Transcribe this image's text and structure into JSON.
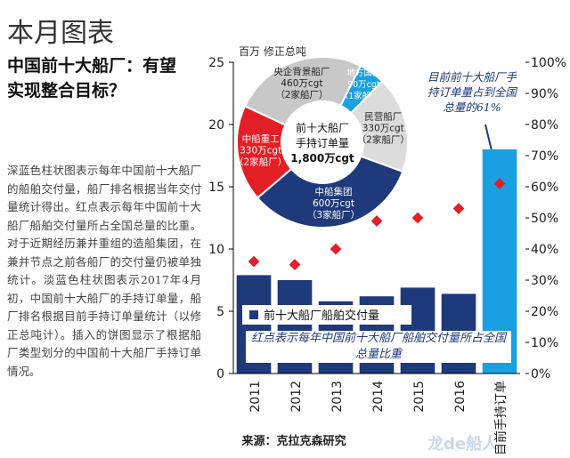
{
  "header": {
    "title": "本月图表"
  },
  "article": {
    "headline": "中国前十大船厂：有望实现整合目标？",
    "body": "深蓝色柱状图表示每年中国前十大船厂的船舶交付量，船厂排名根据当年交付量统计得出。红点表示每年中国前十大船厂船舶交付量所占全国总量的比重。对于近期经历兼并重组的造船集团，在兼并节点之前各船厂的交付量仍被单独统计。淡蓝色柱状图表示2017年4月初，中国前十大船厂的手持订单量，船厂排名根据目前手持订单量统计（以修正总吨计）。插入的饼图显示了根据船厂类型划分的中国前十大船厂手持订单情况。"
  },
  "chart_data": {
    "type": "bar",
    "y_axis_label": "百万 修正总吨",
    "categories": [
      "2011",
      "2012",
      "2013",
      "2014",
      "2015",
      "2016",
      "目前手持订单"
    ],
    "ylim": [
      0,
      25
    ],
    "yticks": [
      0,
      5,
      10,
      15,
      20,
      25
    ],
    "y2lim": [
      0,
      100
    ],
    "y2ticks": [
      {
        "value": 0,
        "label": "0%"
      },
      {
        "value": 10,
        "label": "10%"
      },
      {
        "value": 20,
        "label": "20%"
      },
      {
        "value": 30,
        "label": "30%"
      },
      {
        "value": 40,
        "label": "40%"
      },
      {
        "value": 50,
        "label": "50%"
      },
      {
        "value": 60,
        "label": "60%"
      },
      {
        "value": 70,
        "label": "70%"
      },
      {
        "value": 80,
        "label": "80%"
      },
      {
        "value": 90,
        "label": "90%"
      },
      {
        "value": 100,
        "label": "100%"
      }
    ],
    "series": [
      {
        "name": "前十大船厂船舶交付量",
        "color": "#1f3a7a",
        "highlight_color": "#1aa0e0",
        "values": [
          7.9,
          7.5,
          5.8,
          6.2,
          6.9,
          6.4,
          18.0
        ]
      },
      {
        "type": "scatter",
        "axis": "y2",
        "color": "#e41e26",
        "values": [
          36,
          35,
          40,
          49,
          50,
          53,
          61
        ]
      }
    ],
    "annotations": [
      "红点表示每年中国前十大船厂船舶交付量所占全国总量比重",
      "目前前十大船厂手持订单量占到全国总量的61%"
    ],
    "inset": {
      "type": "pie",
      "center_label": [
        "前十大船厂",
        "手持订单量",
        "1,800万cgt"
      ],
      "slices": [
        {
          "name": "央企背景船厂",
          "value": 460,
          "value_label": "460万cgt",
          "note": "（2家船厂）",
          "color": "#c8c8c8"
        },
        {
          "name": "地方国企",
          "value": 90,
          "value_label": "90万cgt",
          "note": "（1家船厂）",
          "color": "#1aa0e0"
        },
        {
          "name": "民营船厂",
          "value": 330,
          "value_label": "330万cgt",
          "note": "（2家船厂）",
          "color": "#dcdcdc"
        },
        {
          "name": "中船集团",
          "value": 600,
          "value_label": "600万cgt",
          "note": "（3家船厂）",
          "color": "#1f3a7a"
        },
        {
          "name": "中船重工",
          "value": 330,
          "value_label": "330万cgt",
          "note": "（2家船厂）",
          "color": "#e41e26"
        }
      ]
    }
  },
  "source": "来源：克拉克森研究",
  "watermark": "龙de船人"
}
